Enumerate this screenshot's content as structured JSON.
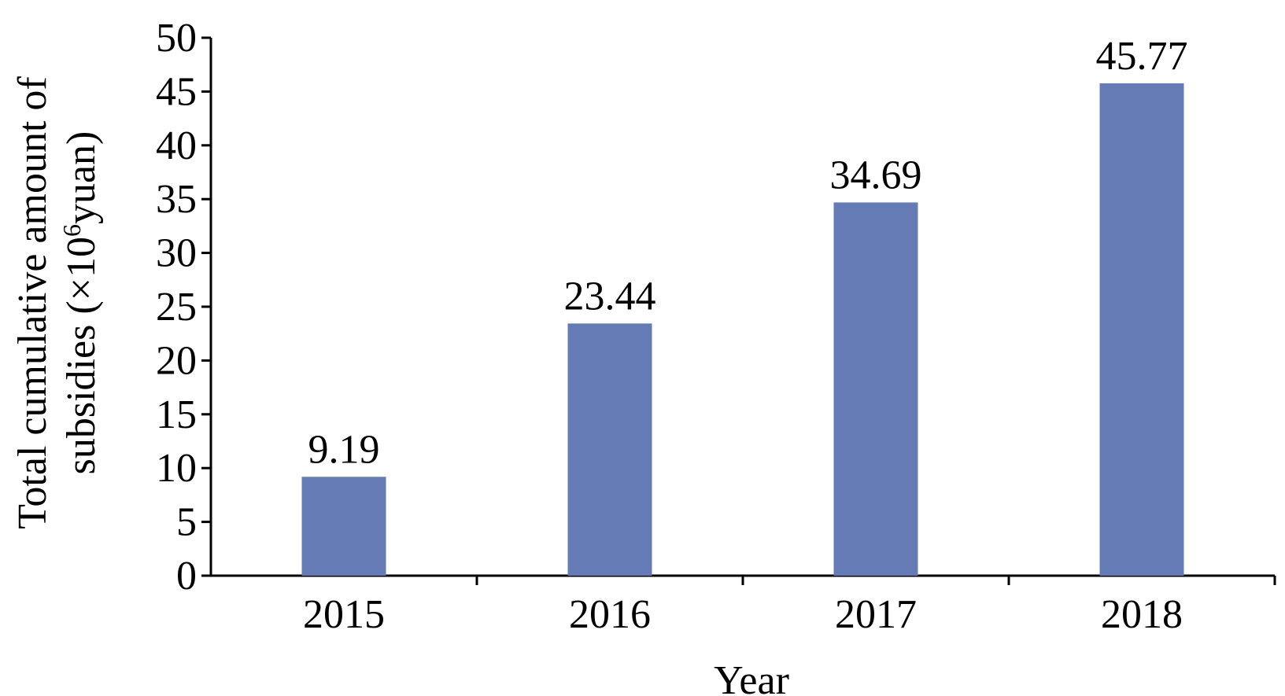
{
  "chart_data": {
    "type": "bar",
    "categories": [
      "2015",
      "2016",
      "2017",
      "2018"
    ],
    "values": [
      9.19,
      23.44,
      34.69,
      45.77
    ],
    "data_labels": [
      "9.19",
      "23.44",
      "34.69",
      "45.77"
    ],
    "xlabel": "Year",
    "ylabel_line1": "Total cumulative amount of",
    "ylabel_line2_prefix": "subsidies (×10",
    "ylabel_line2_exponent": "6",
    "ylabel_line2_suffix": "yuan)",
    "ylim": [
      0,
      50
    ],
    "yticks": [
      0,
      5,
      10,
      15,
      20,
      25,
      30,
      35,
      40,
      45,
      50
    ],
    "grid": false,
    "legend": "none",
    "bar_color": "#657bb5"
  }
}
